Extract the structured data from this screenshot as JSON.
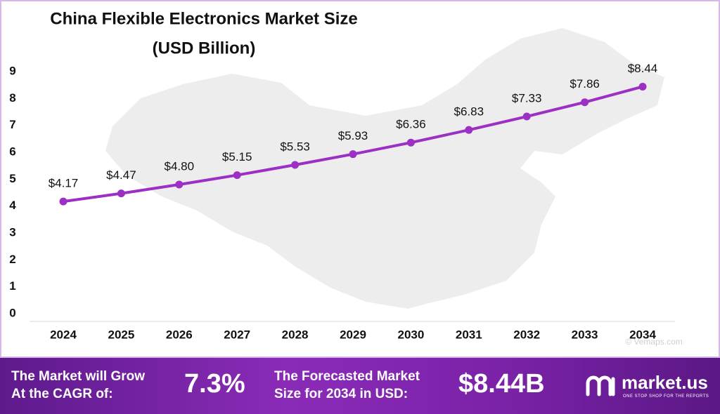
{
  "chart_data": {
    "type": "line",
    "title": "China Flexible Electronics Market Size",
    "subtitle": "(USD Billion)",
    "categories": [
      "2024",
      "2025",
      "2026",
      "2027",
      "2028",
      "2029",
      "2030",
      "2031",
      "2032",
      "2033",
      "2034"
    ],
    "values": [
      4.17,
      4.47,
      4.8,
      5.15,
      5.53,
      5.93,
      6.36,
      6.83,
      7.33,
      7.86,
      8.44
    ],
    "value_labels": [
      "$4.17",
      "$4.47",
      "$4.80",
      "$5.15",
      "$5.53",
      "$5.93",
      "$6.36",
      "$6.83",
      "$7.33",
      "$7.86",
      "$8.44"
    ],
    "color": "#9c2fc4",
    "ylim": [
      0,
      9
    ],
    "yticks": [
      0,
      1,
      2,
      3,
      4,
      5,
      6,
      7,
      8,
      9
    ],
    "grid": false,
    "watermark": "© Vemaps.com"
  },
  "footer": {
    "cagr_label": [
      "The Market will Grow",
      "At the CAGR of:"
    ],
    "cagr_value": "7.3%",
    "forecast_label": [
      "The Forecasted Market",
      "Size for 2034 in USD:"
    ],
    "forecast_value": "$8.44B",
    "brand": "market.us",
    "tagline": "ONE STOP SHOP FOR THE REPORTS"
  }
}
